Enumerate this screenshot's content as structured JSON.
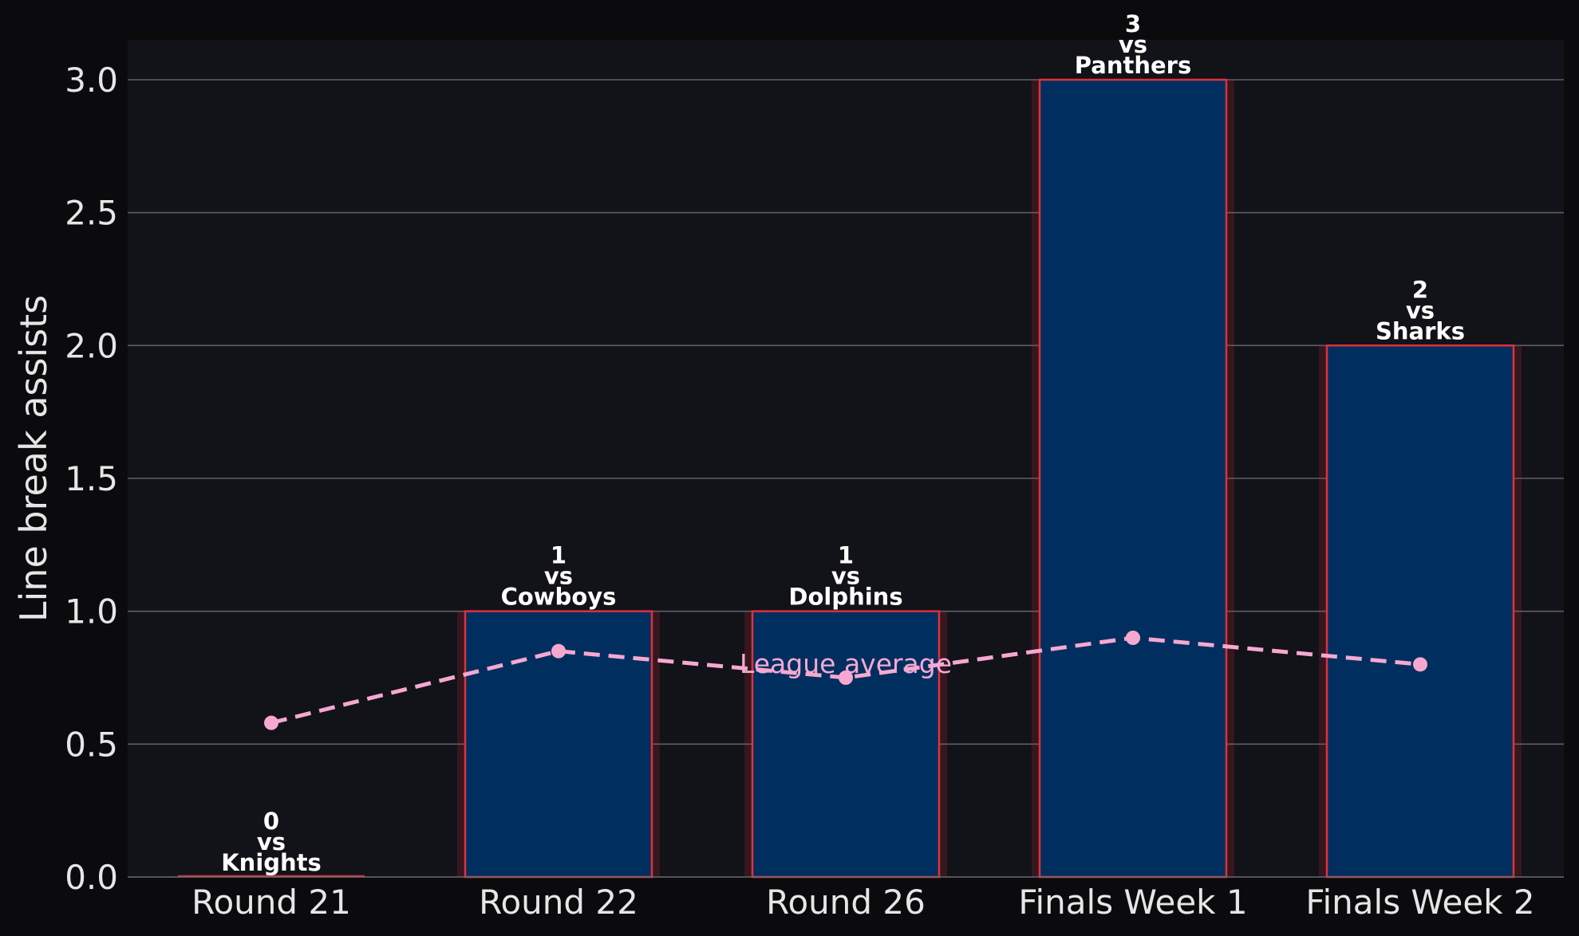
{
  "chart_data": {
    "type": "bar",
    "categories": [
      "Round 21",
      "Round 22",
      "Round 26",
      "Finals Week 1",
      "Finals Week 2"
    ],
    "series": [
      {
        "values": [
          0,
          1,
          1,
          3,
          2
        ],
        "labels": [
          [
            "0",
            "vs",
            "Knights"
          ],
          [
            "1",
            "vs",
            "Cowboys"
          ],
          [
            "1",
            "vs",
            "Dolphins"
          ],
          [
            "3",
            "vs",
            "Panthers"
          ],
          [
            "2",
            "vs",
            "Sharks"
          ]
        ],
        "color": "#002f5f",
        "edge_color": "#e0303a"
      },
      {
        "name": "League average",
        "type": "line",
        "values": [
          0.58,
          0.85,
          0.75,
          0.9,
          0.8
        ],
        "color": "#f7a8d0",
        "style": "dashed"
      }
    ],
    "xlabel": "",
    "ylabel": "Line break assists",
    "ylim": [
      0,
      3.15
    ],
    "yticks": [
      "0.0",
      "0.5",
      "1.0",
      "1.5",
      "2.0",
      "2.5",
      "3.0"
    ],
    "grid": "horizontal",
    "background": "#121219",
    "annotation": "League average"
  }
}
